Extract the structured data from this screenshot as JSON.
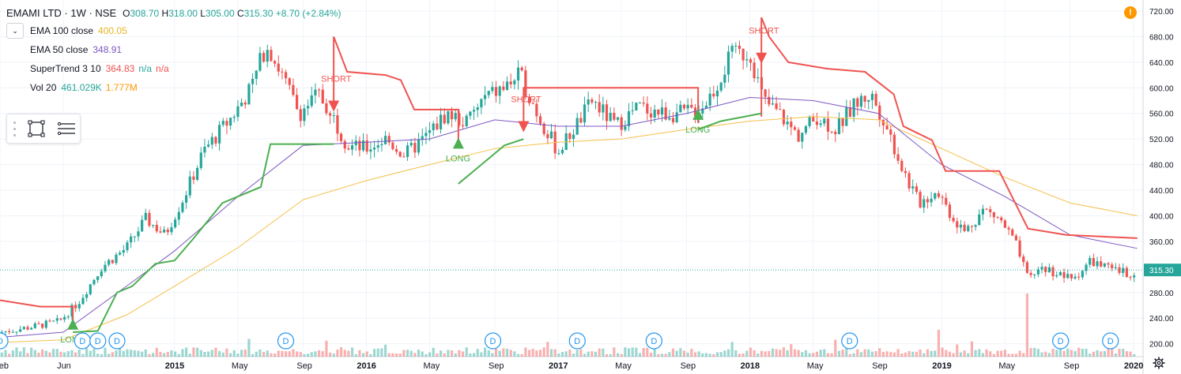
{
  "symbol": {
    "title": "EMAMI LTD · 1W · NSE",
    "open_label": "O",
    "open": "308.70",
    "high_label": "H",
    "high": "318.00",
    "low_label": "L",
    "low": "305.00",
    "close_label": "C",
    "close": "315.30",
    "change": "+8.70 (+2.84%)"
  },
  "indicators": [
    {
      "name": "EMA 100 close",
      "values": [
        "400.05"
      ],
      "colors": [
        "#e6b422"
      ]
    },
    {
      "name": "EMA 50 close",
      "values": [
        "348.91"
      ],
      "colors": [
        "#7e57c2"
      ]
    },
    {
      "name": "SuperTrend 3 10",
      "values": [
        "364.83",
        "n/a",
        "n/a"
      ],
      "colors": [
        "#ef5350",
        "#26a69a",
        "#ef5350"
      ]
    },
    {
      "name": "Vol 20",
      "values": [
        "461.029K",
        "1.777M"
      ],
      "colors": [
        "#26a69a",
        "#ff9800"
      ]
    }
  ],
  "alert_icon": "!",
  "colors": {
    "up": "#26a69a",
    "down": "#ef5350",
    "ema100": "#f5c04a",
    "ema50": "#7e57c2",
    "st_up": "#4caf50",
    "st_down": "#ef5350",
    "price_line": "#26a69a"
  },
  "chart_data": {
    "type": "candlestick",
    "ylim": [
      190,
      720
    ],
    "y_ticks": [
      200,
      240,
      280,
      320,
      360,
      400,
      440,
      480,
      520,
      560,
      600,
      640,
      680,
      720
    ],
    "y_tick_labels": [
      "200.00",
      "240.00",
      "280.00",
      "",
      "360.00",
      "400.00",
      "440.00",
      "480.00",
      "520.00",
      "560.00",
      "600.00",
      "640.00",
      "680.00",
      "720.00"
    ],
    "current_price": 315.3,
    "current_price_label": "315.30",
    "x_range": [
      2014.09,
      2020.05
    ],
    "x_ticks": [
      {
        "label": "Feb",
        "t": 2014.09
      },
      {
        "label": "Jun",
        "t": 2014.42
      },
      {
        "label": "2015",
        "t": 2015.0
      },
      {
        "label": "May",
        "t": 2015.33
      },
      {
        "label": "Sep",
        "t": 2015.67
      },
      {
        "label": "2016",
        "t": 2016.0
      },
      {
        "label": "May",
        "t": 2016.33
      },
      {
        "label": "Sep",
        "t": 2016.67
      },
      {
        "label": "2017",
        "t": 2017.0
      },
      {
        "label": "May",
        "t": 2017.33
      },
      {
        "label": "Sep",
        "t": 2017.67
      },
      {
        "label": "2018",
        "t": 2018.0
      },
      {
        "label": "May",
        "t": 2018.33
      },
      {
        "label": "Sep",
        "t": 2018.67
      },
      {
        "label": "2019",
        "t": 2019.0
      },
      {
        "label": "May",
        "t": 2019.33
      },
      {
        "label": "Sep",
        "t": 2019.67
      },
      {
        "label": "2020",
        "t": 2020.0
      }
    ],
    "price_path": [
      [
        2014.09,
        218
      ],
      [
        2014.25,
        226
      ],
      [
        2014.4,
        235
      ],
      [
        2014.5,
        265
      ],
      [
        2014.62,
        320
      ],
      [
        2014.75,
        350
      ],
      [
        2014.85,
        395
      ],
      [
        2014.95,
        370
      ],
      [
        2015.05,
        430
      ],
      [
        2015.15,
        500
      ],
      [
        2015.3,
        555
      ],
      [
        2015.4,
        600
      ],
      [
        2015.48,
        670
      ],
      [
        2015.56,
        620
      ],
      [
        2015.65,
        560
      ],
      [
        2015.75,
        590
      ],
      [
        2015.82,
        560
      ],
      [
        2015.9,
        510
      ],
      [
        2016.0,
        505
      ],
      [
        2016.1,
        520
      ],
      [
        2016.2,
        495
      ],
      [
        2016.3,
        520
      ],
      [
        2016.42,
        560
      ],
      [
        2016.52,
        545
      ],
      [
        2016.62,
        585
      ],
      [
        2016.72,
        600
      ],
      [
        2016.8,
        620
      ],
      [
        2016.9,
        555
      ],
      [
        2017.0,
        500
      ],
      [
        2017.08,
        535
      ],
      [
        2017.18,
        580
      ],
      [
        2017.3,
        540
      ],
      [
        2017.42,
        570
      ],
      [
        2017.55,
        560
      ],
      [
        2017.65,
        560
      ],
      [
        2017.75,
        570
      ],
      [
        2017.82,
        600
      ],
      [
        2017.9,
        650
      ],
      [
        2018.0,
        655
      ],
      [
        2018.07,
        580
      ],
      [
        2018.15,
        560
      ],
      [
        2018.25,
        525
      ],
      [
        2018.35,
        555
      ],
      [
        2018.45,
        535
      ],
      [
        2018.55,
        575
      ],
      [
        2018.63,
        590
      ],
      [
        2018.7,
        550
      ],
      [
        2018.8,
        470
      ],
      [
        2018.88,
        420
      ],
      [
        2018.98,
        440
      ],
      [
        2019.05,
        400
      ],
      [
        2019.12,
        375
      ],
      [
        2019.22,
        410
      ],
      [
        2019.3,
        395
      ],
      [
        2019.38,
        360
      ],
      [
        2019.45,
        300
      ],
      [
        2019.52,
        320
      ],
      [
        2019.6,
        310
      ],
      [
        2019.68,
        300
      ],
      [
        2019.78,
        330
      ],
      [
        2019.88,
        315
      ],
      [
        2019.98,
        310
      ],
      [
        2020.02,
        315
      ]
    ],
    "ema100": [
      [
        2014.09,
        202
      ],
      [
        2014.42,
        206
      ],
      [
        2014.75,
        245
      ],
      [
        2015.0,
        290
      ],
      [
        2015.33,
        350
      ],
      [
        2015.67,
        425
      ],
      [
        2016.0,
        455
      ],
      [
        2016.33,
        480
      ],
      [
        2016.67,
        505
      ],
      [
        2017.0,
        515
      ],
      [
        2017.33,
        520
      ],
      [
        2017.67,
        535
      ],
      [
        2018.0,
        548
      ],
      [
        2018.33,
        555
      ],
      [
        2018.67,
        550
      ],
      [
        2019.0,
        505
      ],
      [
        2019.33,
        460
      ],
      [
        2019.67,
        420
      ],
      [
        2020.02,
        400
      ]
    ],
    "ema50": [
      [
        2014.09,
        210
      ],
      [
        2014.42,
        218
      ],
      [
        2014.75,
        290
      ],
      [
        2015.0,
        345
      ],
      [
        2015.33,
        430
      ],
      [
        2015.67,
        510
      ],
      [
        2016.0,
        515
      ],
      [
        2016.33,
        520
      ],
      [
        2016.67,
        550
      ],
      [
        2017.0,
        540
      ],
      [
        2017.33,
        540
      ],
      [
        2017.67,
        560
      ],
      [
        2018.0,
        585
      ],
      [
        2018.33,
        580
      ],
      [
        2018.67,
        560
      ],
      [
        2019.0,
        480
      ],
      [
        2019.33,
        430
      ],
      [
        2019.67,
        370
      ],
      [
        2020.02,
        349
      ]
    ],
    "supertrend_down": [
      [
        [
          2014.09,
          268
        ],
        [
          2014.3,
          258
        ],
        [
          2014.47,
          258
        ],
        [
          2014.47,
          225
        ]
      ],
      [
        [
          2015.83,
          572
        ],
        [
          2015.83,
          680
        ],
        [
          2015.9,
          625
        ],
        [
          2016.1,
          620
        ],
        [
          2016.18,
          612
        ],
        [
          2016.25,
          566
        ],
        [
          2016.48,
          566
        ],
        [
          2016.48,
          520
        ]
      ],
      [
        [
          2016.82,
          548
        ],
        [
          2016.82,
          600
        ],
        [
          2017.73,
          600
        ],
        [
          2017.73,
          545
        ]
      ],
      [
        [
          2018.06,
          555
        ],
        [
          2018.06,
          710
        ],
        [
          2018.1,
          680
        ],
        [
          2018.2,
          640
        ],
        [
          2018.4,
          630
        ],
        [
          2018.6,
          625
        ],
        [
          2018.75,
          590
        ],
        [
          2018.8,
          540
        ],
        [
          2018.95,
          518
        ],
        [
          2019.02,
          470
        ],
        [
          2019.3,
          470
        ],
        [
          2019.45,
          380
        ],
        [
          2019.65,
          370
        ],
        [
          2020.02,
          365
        ]
      ]
    ],
    "supertrend_up": [
      [
        [
          2014.47,
          218
        ],
        [
          2014.6,
          220
        ],
        [
          2014.7,
          280
        ],
        [
          2014.78,
          290
        ],
        [
          2014.9,
          325
        ],
        [
          2015.0,
          330
        ],
        [
          2015.1,
          365
        ],
        [
          2015.25,
          420
        ],
        [
          2015.45,
          445
        ],
        [
          2015.5,
          512
        ],
        [
          2015.83,
          512
        ]
      ],
      [
        [
          2016.48,
          450
        ],
        [
          2016.6,
          480
        ],
        [
          2016.72,
          510
        ],
        [
          2016.82,
          520
        ]
      ],
      [
        [
          2017.73,
          535
        ],
        [
          2017.85,
          548
        ],
        [
          2018.06,
          560
        ]
      ]
    ],
    "long_signals": [
      {
        "t": 2014.47,
        "y": 222,
        "label": "LONG"
      },
      {
        "t": 2016.48,
        "y": 505,
        "label": "LONG"
      },
      {
        "t": 2017.73,
        "y": 550,
        "label": "LONG"
      }
    ],
    "short_signals": [
      {
        "t": 2015.83,
        "y": 580,
        "label": "SHORT"
      },
      {
        "t": 2016.82,
        "y": 548,
        "label": "SHORT"
      },
      {
        "t": 2018.06,
        "y": 655,
        "label": "SHORT"
      }
    ],
    "dividend_markers": [
      2014.09,
      2014.52,
      2014.6,
      2014.7,
      2015.58,
      2016.66,
      2017.1,
      2017.5,
      2018.52,
      2019.62,
      2019.88
    ],
    "dividend_label": "D"
  }
}
